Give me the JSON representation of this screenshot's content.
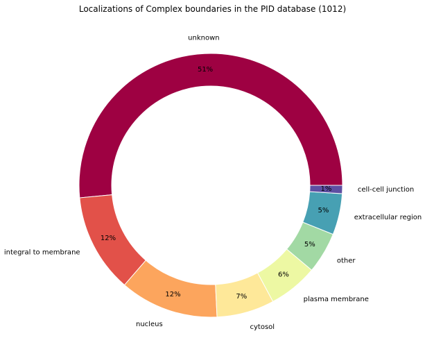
{
  "chart_data": {
    "type": "pie",
    "title": "Localizations of Complex boundaries in the PID database (1012)",
    "slices": [
      {
        "label": "unknown",
        "value": 51,
        "pct_label": "51%",
        "color": "#9e0142"
      },
      {
        "label": "integral to membrane",
        "value": 12,
        "pct_label": "12%",
        "color": "#e25149"
      },
      {
        "label": "nucleus",
        "value": 12,
        "pct_label": "12%",
        "color": "#fca55d"
      },
      {
        "label": "cytosol",
        "value": 7,
        "pct_label": "7%",
        "color": "#fee899"
      },
      {
        "label": "plasma membrane",
        "value": 6,
        "pct_label": "6%",
        "color": "#edf8a3"
      },
      {
        "label": "other",
        "value": 5,
        "pct_label": "5%",
        "color": "#a2d9a4"
      },
      {
        "label": "extracellular region",
        "value": 5,
        "pct_label": "5%",
        "color": "#47a0b3"
      },
      {
        "label": "cell-cell junction",
        "value": 1,
        "pct_label": "1%",
        "color": "#5e4fa2"
      }
    ]
  }
}
